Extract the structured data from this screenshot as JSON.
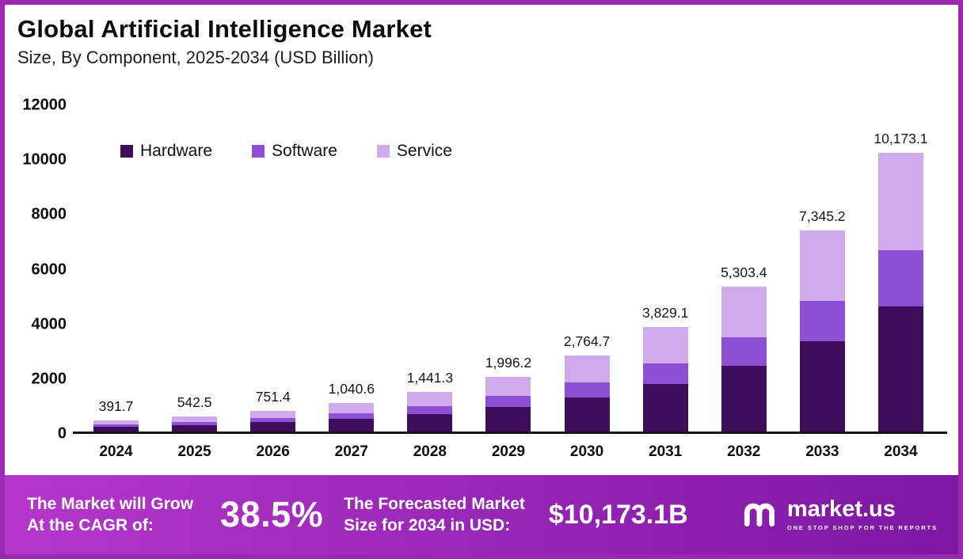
{
  "header": {
    "title": "Global Artificial Intelligence Market",
    "subtitle": "Size, By Component, 2025-2034 (USD Billion)"
  },
  "chart_data": {
    "type": "bar",
    "stacked": true,
    "title": "Global Artificial Intelligence Market",
    "subtitle": "Size, By Component, 2025-2034 (USD Billion)",
    "categories": [
      "2024",
      "2025",
      "2026",
      "2027",
      "2028",
      "2029",
      "2030",
      "2031",
      "2032",
      "2033",
      "2034"
    ],
    "series": [
      {
        "name": "Hardware",
        "color": "#3c0e5c",
        "values": [
          176.3,
          244.1,
          338.1,
          468.3,
          648.6,
          898.3,
          1244.1,
          1723.1,
          2386.5,
          3305.3,
          4577.9
        ]
      },
      {
        "name": "Software",
        "color": "#8d4fd3",
        "values": [
          78.3,
          108.5,
          150.3,
          208.1,
          288.3,
          399.2,
          552.9,
          765.8,
          1060.7,
          1469.0,
          2034.6
        ]
      },
      {
        "name": "Service",
        "color": "#cfabec",
        "values": [
          137.1,
          189.9,
          263.0,
          364.2,
          504.4,
          698.7,
          967.7,
          1340.2,
          1856.2,
          2570.9,
          3560.6
        ]
      }
    ],
    "totals": [
      391.7,
      542.5,
      751.4,
      1040.6,
      1441.3,
      1996.2,
      2764.7,
      3829.1,
      5303.4,
      7345.2,
      10173.1
    ],
    "total_labels": [
      "391.7",
      "542.5",
      "751.4",
      "1,040.6",
      "1,441.3",
      "1,996.2",
      "2,764.7",
      "3,829.1",
      "5,303.4",
      "7,345.2",
      "10,173.1"
    ],
    "legend": [
      "Hardware",
      "Software",
      "Service"
    ],
    "legend_position": "top-left-inside",
    "xlabel": "",
    "ylabel": "",
    "ylim": [
      0,
      12000
    ],
    "yticks": [
      0,
      2000,
      4000,
      6000,
      8000,
      10000,
      12000
    ],
    "grid": false
  },
  "footer": {
    "cagr_label_line1": "The Market will Grow",
    "cagr_label_line2": "At the CAGR of:",
    "cagr_value": "38.5%",
    "forecast_label_line1": "The Forecasted Market",
    "forecast_label_line2": "Size for 2034 in USD:",
    "forecast_value": "$10,173.1B",
    "brand": "market.us",
    "brand_tagline": "ONE STOP SHOP FOR THE REPORTS"
  },
  "colors": {
    "hardware": "#3c0e5c",
    "software": "#8d4fd3",
    "service": "#cfabec",
    "border": "#9c27b0",
    "banner_gradient_start": "#b437c9",
    "banner_gradient_end": "#7d17a2",
    "axis_text": "#0e0e0e",
    "banner_text": "#ffffff"
  }
}
